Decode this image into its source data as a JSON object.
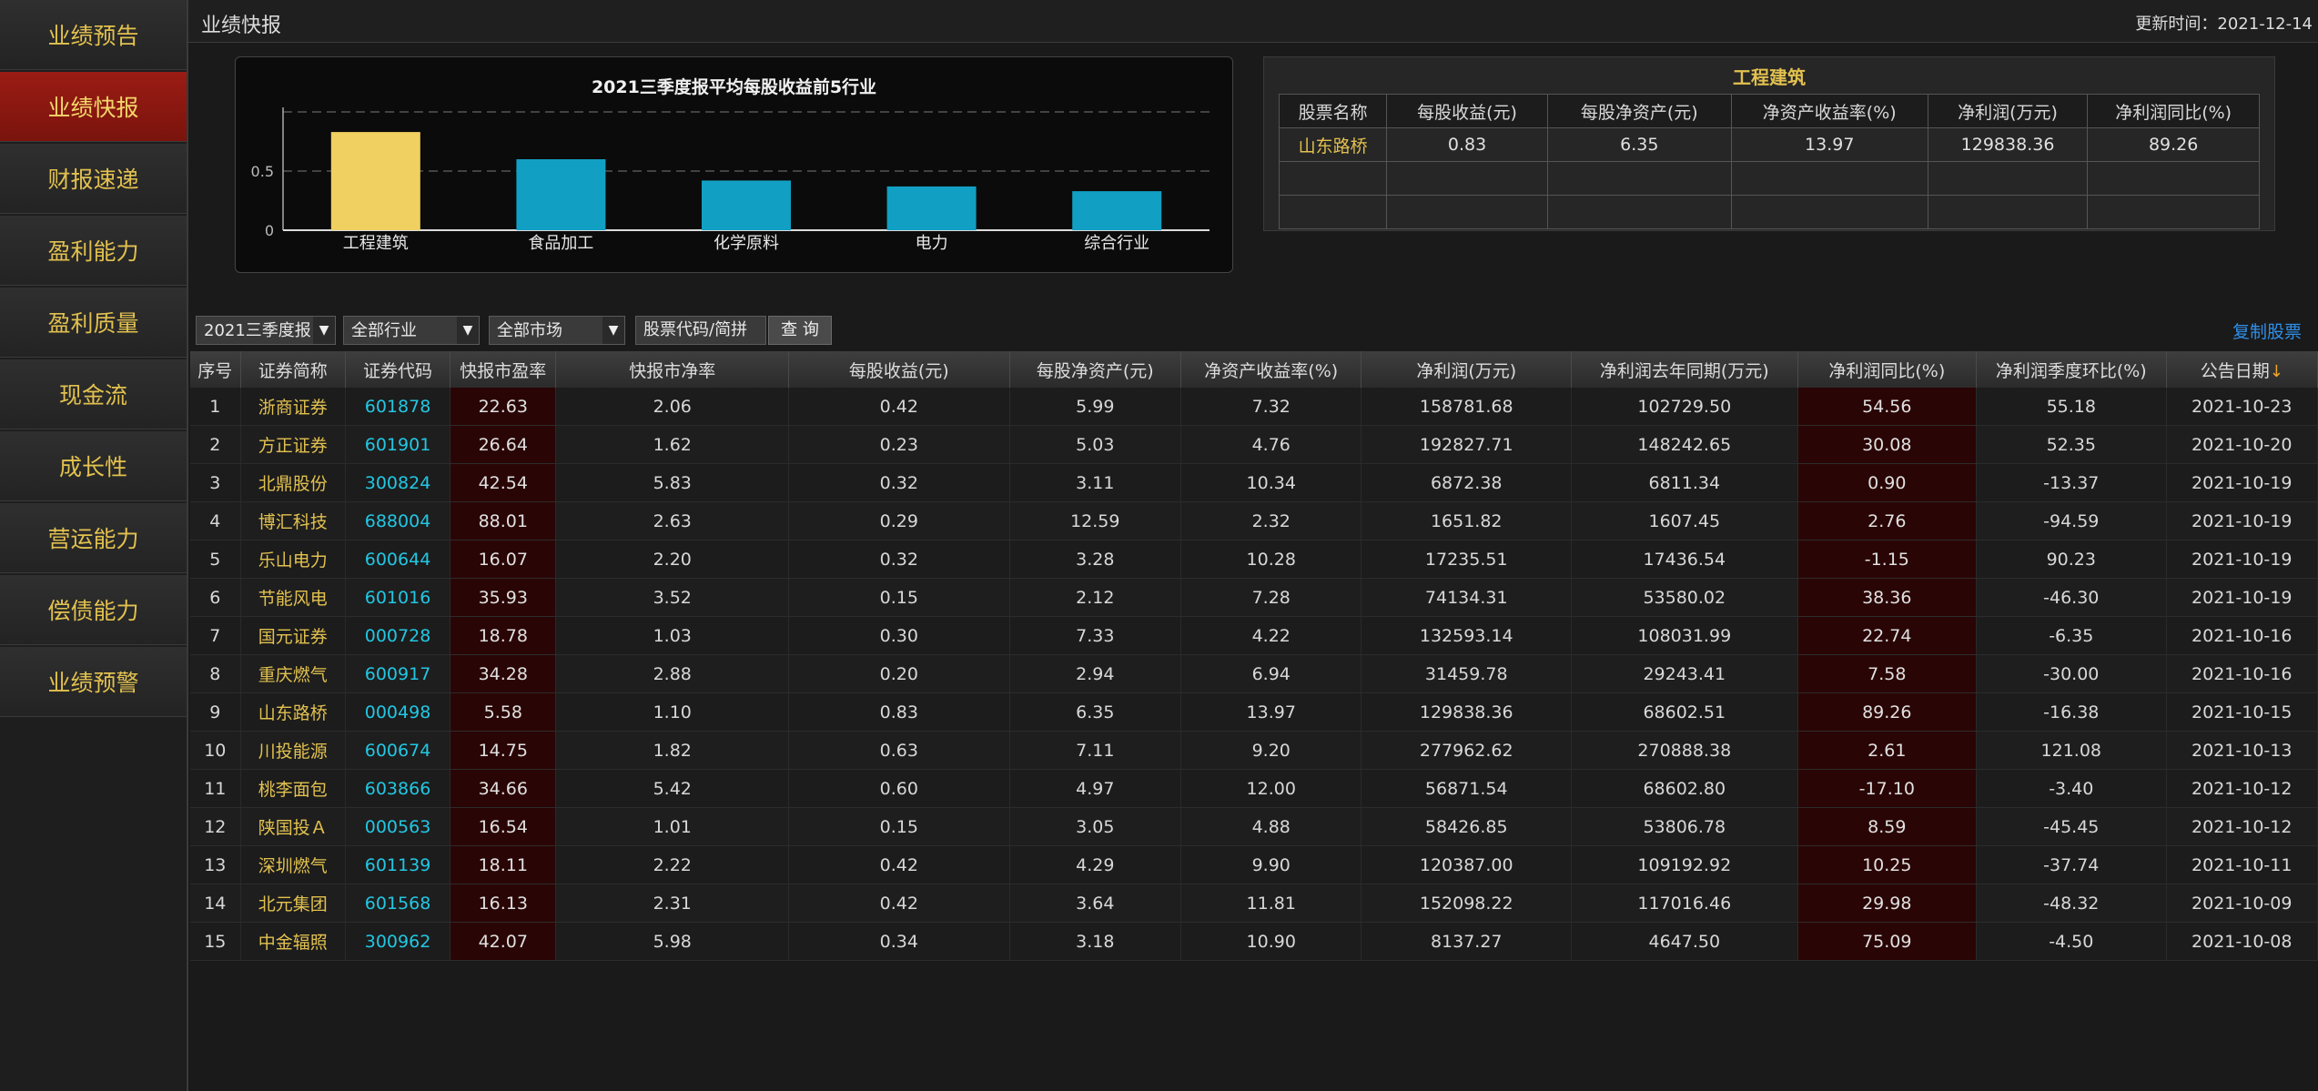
{
  "sidebar": {
    "items": [
      {
        "label": "业绩预告",
        "active": false
      },
      {
        "label": "业绩快报",
        "active": true
      },
      {
        "label": "财报速递",
        "active": false
      },
      {
        "label": "盈利能力",
        "active": false
      },
      {
        "label": "盈利质量",
        "active": false
      },
      {
        "label": "现金流",
        "active": false
      },
      {
        "label": "成长性",
        "active": false
      },
      {
        "label": "营运能力",
        "active": false
      },
      {
        "label": "偿债能力",
        "active": false
      },
      {
        "label": "业绩预警",
        "active": false
      }
    ]
  },
  "header": {
    "title": "业绩快报",
    "update_time": "更新时间：2021-12-14"
  },
  "chart_data": {
    "type": "bar",
    "title": "2021三季度报平均每股收益前5行业",
    "categories": [
      "工程建筑",
      "食品加工",
      "化学原料",
      "电力",
      "综合行业"
    ],
    "values": [
      0.83,
      0.6,
      0.42,
      0.37,
      0.33
    ],
    "ylim": [
      0,
      1.0
    ],
    "yticks": [
      "0",
      "0.5"
    ],
    "grid": true,
    "colors": {
      "highlight": "#f0d060",
      "default": "#129fc4"
    }
  },
  "detail": {
    "title": "工程建筑",
    "headers": [
      "股票名称",
      "每股收益(元)",
      "每股净资产(元)",
      "净资产收益率(%)",
      "净利润(万元)",
      "净利润同比(%)"
    ],
    "rows": [
      [
        "山东路桥",
        "0.83",
        "6.35",
        "13.97",
        "129838.36",
        "89.26"
      ],
      [
        "",
        "",
        "",
        "",
        "",
        ""
      ],
      [
        "",
        "",
        "",
        "",
        "",
        ""
      ]
    ]
  },
  "filters": {
    "period": "2021三季度报",
    "industry": "全部行业",
    "market": "全部市场",
    "search_placeholder": "股票代码/简拼",
    "query_label": "查 询",
    "copy_label": "复制股票"
  },
  "table": {
    "headers": [
      "序号",
      "证券简称",
      "证券代码",
      "快报市盈率",
      "快报市净率",
      "每股收益(元)",
      "每股净资产(元)",
      "净资产收益率(%)",
      "净利润(万元)",
      "净利润去年同期(万元)",
      "净利润同比(%)",
      "净利润季度环比(%)",
      "公告日期"
    ],
    "sort_arrow": "↓",
    "rows": [
      [
        "1",
        "浙商证券",
        "601878",
        "22.63",
        "2.06",
        "0.42",
        "5.99",
        "7.32",
        "158781.68",
        "102729.50",
        "54.56",
        "55.18",
        "2021-10-23"
      ],
      [
        "2",
        "方正证券",
        "601901",
        "26.64",
        "1.62",
        "0.23",
        "5.03",
        "4.76",
        "192827.71",
        "148242.65",
        "30.08",
        "52.35",
        "2021-10-20"
      ],
      [
        "3",
        "北鼎股份",
        "300824",
        "42.54",
        "5.83",
        "0.32",
        "3.11",
        "10.34",
        "6872.38",
        "6811.34",
        "0.90",
        "-13.37",
        "2021-10-19"
      ],
      [
        "4",
        "博汇科技",
        "688004",
        "88.01",
        "2.63",
        "0.29",
        "12.59",
        "2.32",
        "1651.82",
        "1607.45",
        "2.76",
        "-94.59",
        "2021-10-19"
      ],
      [
        "5",
        "乐山电力",
        "600644",
        "16.07",
        "2.20",
        "0.32",
        "3.28",
        "10.28",
        "17235.51",
        "17436.54",
        "-1.15",
        "90.23",
        "2021-10-19"
      ],
      [
        "6",
        "节能风电",
        "601016",
        "35.93",
        "3.52",
        "0.15",
        "2.12",
        "7.28",
        "74134.31",
        "53580.02",
        "38.36",
        "-46.30",
        "2021-10-19"
      ],
      [
        "7",
        "国元证券",
        "000728",
        "18.78",
        "1.03",
        "0.30",
        "7.33",
        "4.22",
        "132593.14",
        "108031.99",
        "22.74",
        "-6.35",
        "2021-10-16"
      ],
      [
        "8",
        "重庆燃气",
        "600917",
        "34.28",
        "2.88",
        "0.20",
        "2.94",
        "6.94",
        "31459.78",
        "29243.41",
        "7.58",
        "-30.00",
        "2021-10-16"
      ],
      [
        "9",
        "山东路桥",
        "000498",
        "5.58",
        "1.10",
        "0.83",
        "6.35",
        "13.97",
        "129838.36",
        "68602.51",
        "89.26",
        "-16.38",
        "2021-10-15"
      ],
      [
        "10",
        "川投能源",
        "600674",
        "14.75",
        "1.82",
        "0.63",
        "7.11",
        "9.20",
        "277962.62",
        "270888.38",
        "2.61",
        "121.08",
        "2021-10-13"
      ],
      [
        "11",
        "桃李面包",
        "603866",
        "34.66",
        "5.42",
        "0.60",
        "4.97",
        "12.00",
        "56871.54",
        "68602.80",
        "-17.10",
        "-3.40",
        "2021-10-12"
      ],
      [
        "12",
        "陕国投Ａ",
        "000563",
        "16.54",
        "1.01",
        "0.15",
        "3.05",
        "4.88",
        "58426.85",
        "53806.78",
        "8.59",
        "-45.45",
        "2021-10-12"
      ],
      [
        "13",
        "深圳燃气",
        "601139",
        "18.11",
        "2.22",
        "0.42",
        "4.29",
        "9.90",
        "120387.00",
        "109192.92",
        "10.25",
        "-37.74",
        "2021-10-11"
      ],
      [
        "14",
        "北元集团",
        "601568",
        "16.13",
        "2.31",
        "0.42",
        "3.64",
        "11.81",
        "152098.22",
        "117016.46",
        "29.98",
        "-48.32",
        "2021-10-09"
      ],
      [
        "15",
        "中金辐照",
        "300962",
        "42.07",
        "5.98",
        "0.34",
        "3.18",
        "10.90",
        "8137.27",
        "4647.50",
        "75.09",
        "-4.50",
        "2021-10-08"
      ]
    ]
  }
}
